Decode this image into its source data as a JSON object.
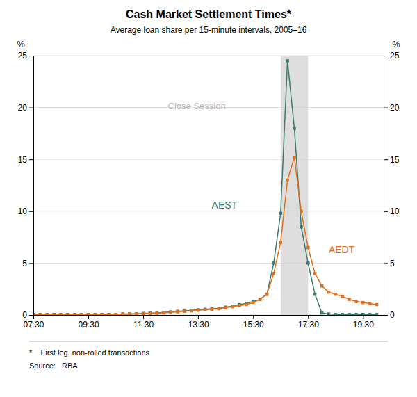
{
  "chart_data": {
    "type": "line",
    "title": "Cash Market Settlement Times*",
    "subtitle": "Average loan share per 15-minute intervals, 2005–16",
    "ylabel": "%",
    "y2label": "%",
    "footnotes": [
      "*    First leg, non-rolled transactions",
      "Source:   RBA"
    ],
    "x": [
      450,
      465,
      480,
      495,
      510,
      525,
      540,
      555,
      570,
      585,
      600,
      615,
      630,
      645,
      660,
      675,
      690,
      705,
      720,
      735,
      750,
      765,
      780,
      795,
      810,
      825,
      840,
      855,
      870,
      885,
      900,
      915,
      930,
      945,
      960,
      975,
      990,
      1005,
      1020,
      1035,
      1050,
      1065,
      1080,
      1095,
      1110,
      1125,
      1140,
      1155,
      1170,
      1185,
      1200
    ],
    "series": [
      {
        "name": "AEST",
        "color": "#3d7a6e",
        "marker": "square",
        "values": [
          0.05,
          0.05,
          0.05,
          0.05,
          0.05,
          0.05,
          0.05,
          0.05,
          0.05,
          0.05,
          0.05,
          0.05,
          0.05,
          0.1,
          0.1,
          0.12,
          0.15,
          0.18,
          0.2,
          0.25,
          0.3,
          0.35,
          0.4,
          0.45,
          0.5,
          0.55,
          0.6,
          0.65,
          0.75,
          0.85,
          1.0,
          1.1,
          1.3,
          1.5,
          2.0,
          5.0,
          9.8,
          24.5,
          18.0,
          8.5,
          5.0,
          2.0,
          0.2,
          0.1,
          0.05,
          0.05,
          0.05,
          0.05,
          0.05,
          0.05,
          0.05
        ]
      },
      {
        "name": "AEDT",
        "color": "#e07020",
        "marker": "square",
        "values": [
          0.03,
          0.03,
          0.03,
          0.03,
          0.03,
          0.03,
          0.03,
          0.03,
          0.03,
          0.03,
          0.03,
          0.03,
          0.05,
          0.05,
          0.08,
          0.1,
          0.12,
          0.15,
          0.18,
          0.2,
          0.25,
          0.3,
          0.35,
          0.4,
          0.45,
          0.5,
          0.55,
          0.6,
          0.7,
          0.8,
          0.9,
          1.0,
          1.2,
          1.5,
          2.0,
          4.0,
          7.0,
          13.0,
          15.2,
          10.0,
          6.5,
          4.0,
          2.8,
          2.2,
          2.0,
          1.8,
          1.5,
          1.3,
          1.2,
          1.1,
          1.0
        ]
      }
    ],
    "xlim": [
      450,
      1215
    ],
    "xticks": [
      {
        "value": 450,
        "label": "07:30"
      },
      {
        "value": 570,
        "label": "09:30"
      },
      {
        "value": 690,
        "label": "11:30"
      },
      {
        "value": 810,
        "label": "13:30"
      },
      {
        "value": 930,
        "label": "15:30"
      },
      {
        "value": 1050,
        "label": "17:30"
      },
      {
        "value": 1170,
        "label": "19:30"
      }
    ],
    "ylim": [
      0,
      25
    ],
    "yticks": [
      0,
      5,
      10,
      15,
      20,
      25
    ],
    "y2lim": [
      0,
      25
    ],
    "y2ticks": [
      0,
      5,
      10,
      15,
      20,
      25
    ],
    "grid": true,
    "spans": [
      {
        "x0": 990,
        "x1": 1050,
        "color": "#d0d0d0"
      }
    ],
    "annotations": [
      {
        "text": "Close Session",
        "x": 870,
        "y": 20.5,
        "color": "#b8b8b8"
      },
      {
        "text": "AEST",
        "x": 895,
        "y": 10.5,
        "color": "#3d7a6e"
      },
      {
        "text": "AEDT",
        "x": 1095,
        "y": 6.2,
        "color": "#e07020"
      }
    ]
  }
}
